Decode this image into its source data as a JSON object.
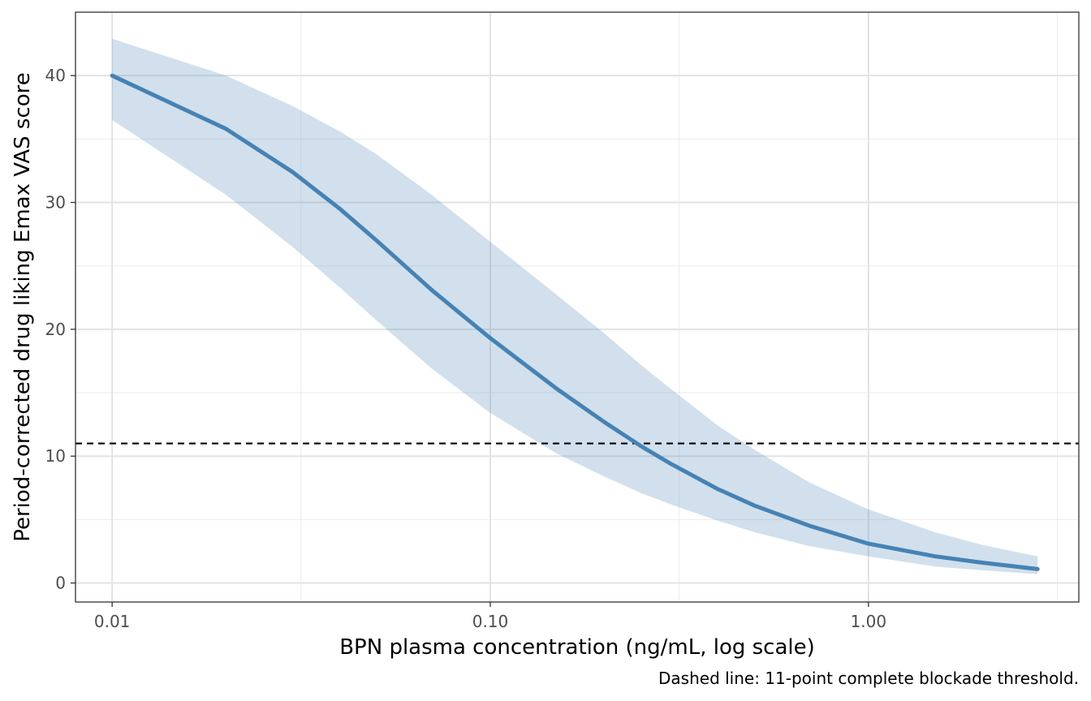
{
  "chart_data": {
    "type": "line",
    "xlabel": "BPN plasma concentration (ng/mL, log scale)",
    "ylabel": "Period-corrected drug liking Emax VAS score",
    "caption": "Dashed line: 11-point complete blockade threshold.",
    "x_scale": "log10",
    "xlim": [
      0.008,
      3.6
    ],
    "ylim": [
      -1.5,
      45
    ],
    "x_ticks": [
      {
        "value": 0.01,
        "label": "0.01"
      },
      {
        "value": 0.1,
        "label": "0.10"
      },
      {
        "value": 1.0,
        "label": "1.00"
      }
    ],
    "y_ticks": [
      {
        "value": 0,
        "label": "0"
      },
      {
        "value": 10,
        "label": "10"
      },
      {
        "value": 20,
        "label": "20"
      },
      {
        "value": 30,
        "label": "30"
      },
      {
        "value": 40,
        "label": "40"
      }
    ],
    "x_minor_ticks": [
      0.0316,
      0.316,
      3.16
    ],
    "y_minor_ticks": [
      5,
      15,
      25,
      35
    ],
    "grid": true,
    "reference_line": {
      "y": 11,
      "style": "dashed",
      "color": "#000000"
    },
    "series": [
      {
        "color": "#4682B4",
        "band_color": "#4682B4",
        "band_opacity": 0.25,
        "x": [
          0.01,
          0.02,
          0.03,
          0.04,
          0.05,
          0.07,
          0.1,
          0.15,
          0.2,
          0.25,
          0.3,
          0.4,
          0.5,
          0.7,
          1.0,
          1.5,
          2.0,
          2.8
        ],
        "y": [
          40.0,
          35.8,
          32.4,
          29.5,
          27.0,
          23.1,
          19.3,
          15.3,
          12.7,
          10.8,
          9.4,
          7.4,
          6.1,
          4.5,
          3.1,
          2.1,
          1.6,
          1.1
        ],
        "lower": [
          36.5,
          30.6,
          26.5,
          23.3,
          20.7,
          16.9,
          13.4,
          10.2,
          8.4,
          7.1,
          6.2,
          4.9,
          4.0,
          2.9,
          2.1,
          1.3,
          1.0,
          0.7
        ],
        "upper": [
          42.9,
          40.0,
          37.6,
          35.6,
          33.8,
          30.6,
          26.9,
          22.7,
          19.7,
          17.2,
          15.3,
          12.4,
          10.5,
          7.9,
          5.8,
          4.0,
          3.0,
          2.1
        ]
      }
    ]
  }
}
